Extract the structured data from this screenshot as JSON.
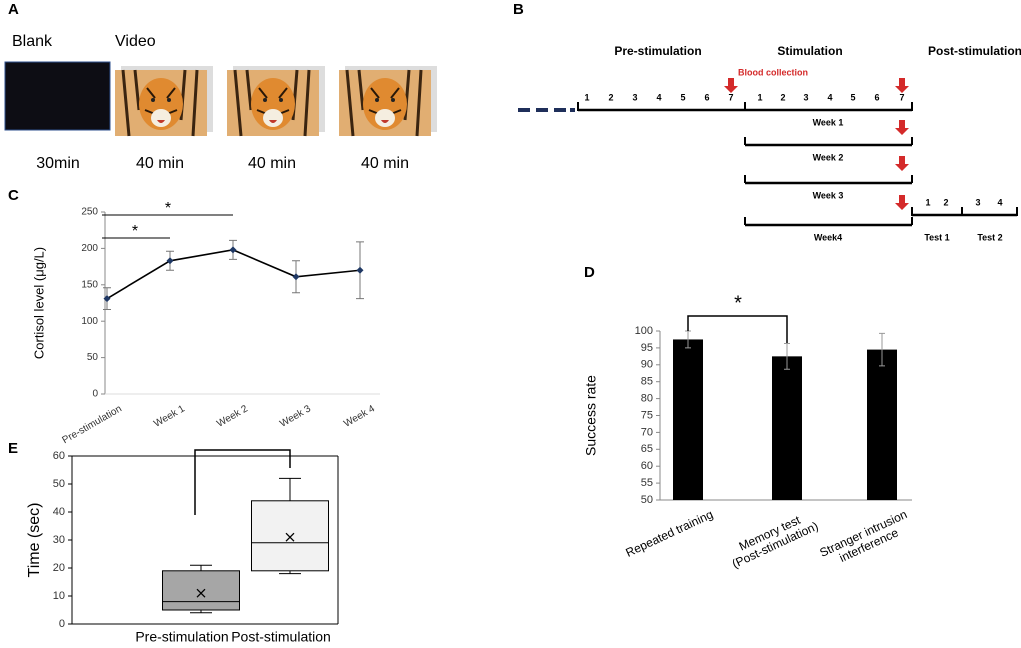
{
  "panel_labels": [
    "A",
    "B",
    "C",
    "D",
    "E"
  ],
  "panel_a": {
    "phases": [
      "Blank",
      "Video"
    ],
    "durations": [
      "30min",
      "40 min",
      "40 min",
      "40 min"
    ]
  },
  "panel_b": {
    "phases": [
      "Pre-stimulation",
      "Stimulation",
      "Post-stimulation"
    ],
    "blood_collection": "Blood collection",
    "pre_days": [
      "1",
      "2",
      "3",
      "4",
      "5",
      "6",
      "7"
    ],
    "stim_days": [
      "1",
      "2",
      "3",
      "4",
      "5",
      "6",
      "7"
    ],
    "weeks": [
      "Week 1",
      "Week 2",
      "Week 3",
      "Week4"
    ],
    "test_days": [
      "1",
      "2",
      "3",
      "4"
    ],
    "tests": [
      "Test 1",
      "Test 2"
    ]
  },
  "chart_data": [
    {
      "type": "line",
      "ylabel": "Cortisol level (μg/L)",
      "categories": [
        "Pre-stimulation",
        "Week 1",
        "Week 2",
        "Week 3",
        "Week 4"
      ],
      "values": [
        131,
        183,
        198,
        161,
        170
      ],
      "errors": [
        15,
        13,
        13,
        22,
        39
      ],
      "color": "#1f3864",
      "ylim": [
        0,
        250
      ],
      "yticks": [
        0,
        50,
        100,
        150,
        200,
        250
      ],
      "annotations": [
        "*",
        "*"
      ]
    },
    {
      "type": "bar",
      "ylabel": "Success rate",
      "categories": [
        "Repeated training",
        "Memory test\n(Post-stimulation)",
        "Stranger intrusion\ninterference"
      ],
      "values": [
        97.5,
        92.5,
        94.5
      ],
      "errors": [
        2.5,
        3.8,
        4.8
      ],
      "color": "#000000",
      "ylim": [
        50,
        100
      ],
      "yticks": [
        50,
        55,
        60,
        65,
        70,
        75,
        80,
        85,
        90,
        95,
        100
      ],
      "annotations": [
        "*"
      ]
    },
    {
      "type": "box",
      "ylabel": "Time (sec)",
      "categories": [
        "Pre-stimulation",
        "Post-stimulation"
      ],
      "whisker_low": [
        4,
        18
      ],
      "q1": [
        5,
        19
      ],
      "median": [
        8,
        29
      ],
      "q3": [
        19,
        44
      ],
      "whisker_high": [
        21,
        52
      ],
      "mean": [
        11,
        31
      ],
      "colors": [
        "#a6a6a6",
        "#f2f2f2"
      ],
      "ylim": [
        0,
        60
      ],
      "yticks": [
        0,
        10,
        20,
        30,
        40,
        50,
        60
      ]
    }
  ]
}
